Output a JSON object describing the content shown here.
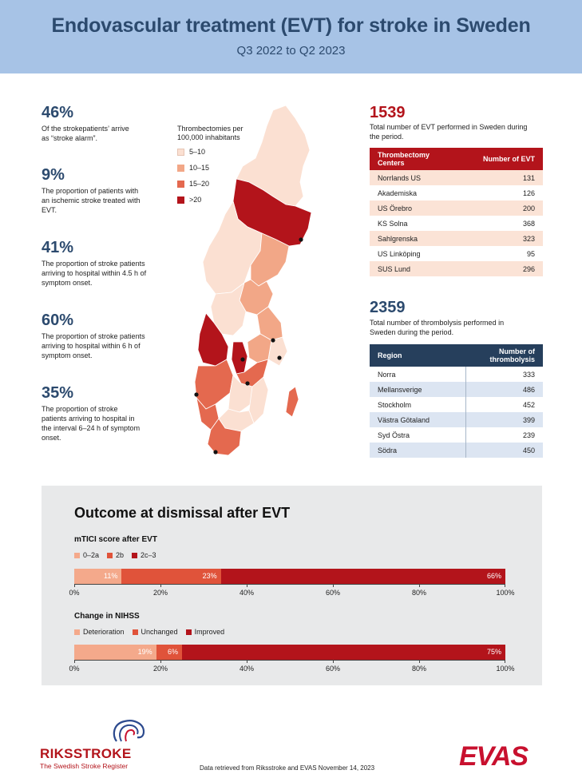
{
  "header": {
    "title": "Endovascular treatment (EVT) for stroke in Sweden",
    "subtitle": "Q3 2022 to Q2 2023"
  },
  "stats": [
    {
      "value": "46%",
      "desc": "Of the strokepatients’ arrive as “stroke alarm”."
    },
    {
      "value": "9%",
      "desc": "The proportion of patients with an ischemic stroke treated with EVT."
    },
    {
      "value": "41%",
      "desc": "The proportion of stroke patients arriving to hospital within 4.5 h of symptom onset."
    },
    {
      "value": "60%",
      "desc": "The proportion of stroke patients arriving to hospital within 6 h of symptom onset."
    },
    {
      "value": "35%",
      "desc": "The proportion of stroke patients arriving to hospital in the interval 6–24 h of symptom onset."
    }
  ],
  "map_legend": {
    "title": "Thrombectomies per 100,000 inhabitants",
    "items": [
      {
        "label": "5–10",
        "color": "#fbe0d2"
      },
      {
        "label": "10–15",
        "color": "#f2a787"
      },
      {
        "label": "15–20",
        "color": "#e4694f"
      },
      {
        "label": ">20",
        "color": "#b3141b"
      }
    ]
  },
  "evt": {
    "total": "1539",
    "desc": "Total number of EVT performed in Sweden during the period.",
    "col1": "Thrombectomy Centers",
    "col2": "Number of EVT",
    "rows": [
      {
        "name": "Norrlands US",
        "value": "131"
      },
      {
        "name": "Akademiska",
        "value": "126"
      },
      {
        "name": "US Örebro",
        "value": "200"
      },
      {
        "name": "KS Solna",
        "value": "368"
      },
      {
        "name": "Sahlgrenska",
        "value": "323"
      },
      {
        "name": "US Linköping",
        "value": "95"
      },
      {
        "name": "SUS Lund",
        "value": "296"
      }
    ]
  },
  "thrombolysis": {
    "total": "2359",
    "desc": "Total number of thrombolysis performed in Sweden during the period.",
    "col1": "Region",
    "col2": "Number of thrombolysis",
    "rows": [
      {
        "name": "Norra",
        "value": "333"
      },
      {
        "name": "Mellansverige",
        "value": "486"
      },
      {
        "name": "Stockholm",
        "value": "452"
      },
      {
        "name": "Västra Götaland",
        "value": "399"
      },
      {
        "name": "Syd Östra",
        "value": "239"
      },
      {
        "name": "Södra",
        "value": "450"
      }
    ]
  },
  "outcome": {
    "title": "Outcome at dismissal after EVT"
  },
  "chart_data": [
    {
      "type": "bar",
      "orientation": "horizontal-stacked",
      "title": "mTICI score after EVT",
      "series": [
        {
          "name": "0–2a",
          "value": 11,
          "label": "11%",
          "color": "#f4a98b"
        },
        {
          "name": "2b",
          "value": 23,
          "label": "23%",
          "color": "#e0533a"
        },
        {
          "name": "2c–3",
          "value": 66,
          "label": "66%",
          "color": "#b3141b"
        }
      ],
      "xlim": [
        0,
        100
      ],
      "ticks": [
        "0%",
        "20%",
        "40%",
        "60%",
        "80%",
        "100%"
      ]
    },
    {
      "type": "bar",
      "orientation": "horizontal-stacked",
      "title": "Change in NIHSS",
      "series": [
        {
          "name": "Deterioration",
          "value": 19,
          "label": "19%",
          "color": "#f4a98b"
        },
        {
          "name": "Unchanged",
          "value": 6,
          "label": "6%",
          "color": "#e0533a"
        },
        {
          "name": "Improved",
          "value": 75,
          "label": "75%",
          "color": "#b3141b"
        }
      ],
      "xlim": [
        0,
        100
      ],
      "ticks": [
        "0%",
        "20%",
        "40%",
        "60%",
        "80%",
        "100%"
      ]
    }
  ],
  "footer": {
    "riksstroke": "RIKSSTROKE",
    "riksstroke_sub": "The Swedish Stroke Register",
    "source": "Data retrieved from Riksstroke and EVAS November 14, 2023",
    "evas": "EVAS"
  }
}
